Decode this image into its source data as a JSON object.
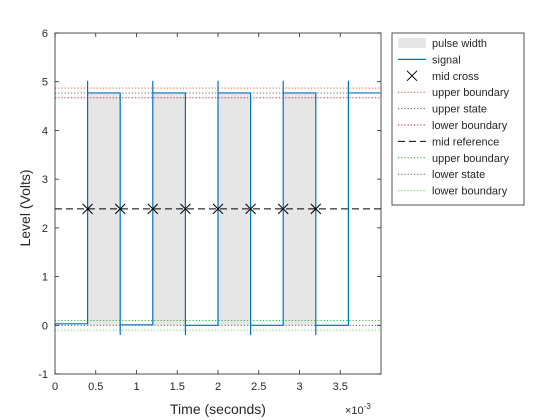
{
  "chart_data": {
    "type": "line",
    "title": "",
    "xlabel": "Time (seconds)",
    "ylabel": "Level (Volts)",
    "x_exponent_label": "×10",
    "x_exponent": "-3",
    "xlim": [
      0,
      4
    ],
    "ylim": [
      -1,
      6
    ],
    "x_ticks": [
      0,
      0.5,
      1,
      1.5,
      2,
      2.5,
      3,
      3.5
    ],
    "x_tick_labels": [
      "0",
      "0.5",
      "1",
      "1.5",
      "2",
      "2.5",
      "3",
      "3.5"
    ],
    "y_ticks": [
      -1,
      0,
      1,
      2,
      3,
      4,
      5,
      6
    ],
    "y_tick_labels": [
      "-1",
      "0",
      "1",
      "2",
      "3",
      "4",
      "5",
      "6"
    ],
    "grid": false,
    "legend_position": "top-right-outside",
    "series": [
      {
        "name": "signal",
        "color": "#0072BD",
        "points": [
          [
            0,
            0.03
          ],
          [
            0.4,
            0.03
          ],
          [
            0.4,
            4.77
          ],
          [
            0.8,
            4.77
          ],
          [
            0.8,
            0.01
          ],
          [
            1.2,
            0.01
          ],
          [
            1.2,
            4.77
          ],
          [
            1.6,
            4.77
          ],
          [
            1.6,
            0.0
          ],
          [
            2.0,
            0.0
          ],
          [
            2.0,
            4.77
          ],
          [
            2.4,
            4.77
          ],
          [
            2.4,
            0.0
          ],
          [
            2.8,
            0.0
          ],
          [
            2.8,
            4.77
          ],
          [
            3.2,
            4.77
          ],
          [
            3.2,
            0.0
          ],
          [
            3.6,
            0.0
          ],
          [
            3.6,
            4.77
          ],
          [
            3.99,
            4.77
          ]
        ],
        "spikes": [
          [
            0.4,
            5.02
          ],
          [
            0.8,
            -0.2
          ],
          [
            1.2,
            5.02
          ],
          [
            1.6,
            -0.2
          ],
          [
            2.0,
            5.02
          ],
          [
            2.4,
            -0.2
          ],
          [
            2.8,
            5.02
          ],
          [
            3.2,
            -0.2
          ],
          [
            3.6,
            5.02
          ]
        ]
      }
    ],
    "pulse_width": {
      "name": "pulse width",
      "color": "#e6e6e6",
      "intervals": [
        [
          0.4,
          0.8
        ],
        [
          1.2,
          1.6
        ],
        [
          2.0,
          2.4
        ],
        [
          2.8,
          3.2
        ]
      ]
    },
    "mid_cross": {
      "name": "mid cross",
      "y": 2.39,
      "x": [
        0.4,
        0.8,
        1.2,
        1.6,
        2.0,
        2.4,
        2.8,
        3.2
      ]
    },
    "reference_lines": [
      {
        "name": "upper boundary",
        "y": 4.87,
        "color": "#d95319",
        "style": "dotted"
      },
      {
        "name": "upper state",
        "y": 4.77,
        "color": "#555555",
        "style": "dotted"
      },
      {
        "name": "lower boundary",
        "y": 4.67,
        "color": "#a2142f",
        "style": "dotted"
      },
      {
        "name": "mid reference",
        "y": 2.39,
        "color": "#000000",
        "style": "dashed"
      },
      {
        "name": "upper boundary",
        "y": 0.1,
        "color": "#22aa22",
        "style": "dotted"
      },
      {
        "name": "lower state",
        "y": 0.0,
        "color": "#555555",
        "style": "dotted"
      },
      {
        "name": "lower boundary",
        "y": -0.1,
        "color": "#66cc66",
        "style": "dotted"
      }
    ],
    "legend": [
      {
        "label": "pulse width",
        "kind": "patch",
        "color": "#e6e6e6"
      },
      {
        "label": "signal",
        "kind": "line",
        "color": "#0072BD",
        "style": "solid"
      },
      {
        "label": "mid cross",
        "kind": "marker",
        "color": "#000000"
      },
      {
        "label": "upper boundary",
        "kind": "line",
        "color": "#d95319",
        "style": "dotted"
      },
      {
        "label": "upper state",
        "kind": "line",
        "color": "#555555",
        "style": "dotted"
      },
      {
        "label": "lower boundary",
        "kind": "line",
        "color": "#a2142f",
        "style": "dotted"
      },
      {
        "label": "mid reference",
        "kind": "line",
        "color": "#000000",
        "style": "dashed"
      },
      {
        "label": "upper boundary",
        "kind": "line",
        "color": "#22aa22",
        "style": "dotted"
      },
      {
        "label": "lower state",
        "kind": "line",
        "color": "#555555",
        "style": "dotted"
      },
      {
        "label": "lower boundary",
        "kind": "line",
        "color": "#66cc66",
        "style": "dotted"
      }
    ]
  }
}
